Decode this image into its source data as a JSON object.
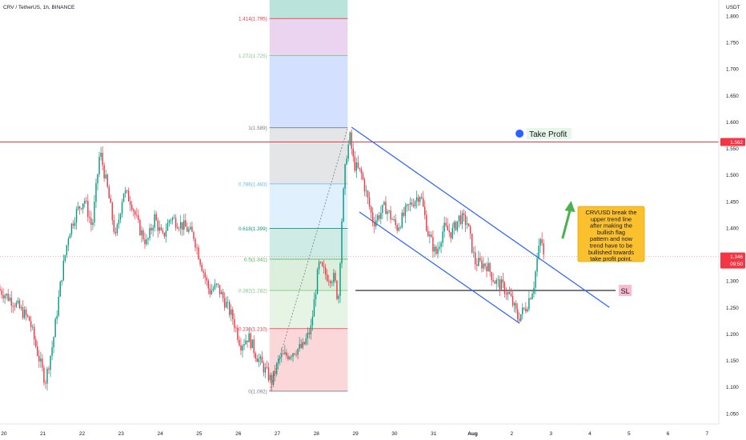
{
  "header": {
    "symbol_label": "CRV / TetherUS, 1h, BINANCE",
    "currency": "USDT"
  },
  "price_axis": {
    "ticks": [
      "1.800",
      "1.750",
      "1.700",
      "1.650",
      "1.600",
      "1.550",
      "1.500",
      "1.450",
      "1.400",
      "1.350",
      "1.300",
      "1.250",
      "1.200",
      "1.150",
      "1.100",
      "1.050"
    ]
  },
  "time_axis": {
    "ticks": [
      {
        "label": "20",
        "day": 20
      },
      {
        "label": "21",
        "day": 21
      },
      {
        "label": "22",
        "day": 22
      },
      {
        "label": "23",
        "day": 23
      },
      {
        "label": "24",
        "day": 24
      },
      {
        "label": "25",
        "day": 25
      },
      {
        "label": "26",
        "day": 26
      },
      {
        "label": "27",
        "day": 27
      },
      {
        "label": "28",
        "day": 28
      },
      {
        "label": "29",
        "day": 29
      },
      {
        "label": "30",
        "day": 30
      },
      {
        "label": "31",
        "day": 31
      },
      {
        "label": "Aug",
        "day": 32
      },
      {
        "label": "2",
        "day": 33
      },
      {
        "label": "3",
        "day": 34
      },
      {
        "label": "4",
        "day": 35
      },
      {
        "label": "5",
        "day": 36
      },
      {
        "label": "6",
        "day": 37
      },
      {
        "label": "7",
        "day": 38
      }
    ]
  },
  "chart_data": {
    "type": "line",
    "title": "",
    "xlabel": "",
    "ylabel": "",
    "x_unit": "day (July; Aug 1 = 32)",
    "ylim": [
      1.03,
      1.83
    ],
    "xlim": [
      19.9,
      38.3
    ],
    "grid": false,
    "legend": "none",
    "series": [
      {
        "values": [
          [
            19.9,
            1.285
          ],
          [
            20.3,
            1.26
          ],
          [
            20.7,
            1.225
          ],
          [
            20.9,
            1.165
          ],
          [
            21.1,
            1.11
          ],
          [
            21.3,
            1.185
          ],
          [
            21.5,
            1.3
          ],
          [
            21.7,
            1.39
          ],
          [
            21.9,
            1.43
          ],
          [
            22.1,
            1.455
          ],
          [
            22.3,
            1.4
          ],
          [
            22.5,
            1.545
          ],
          [
            22.7,
            1.47
          ],
          [
            22.9,
            1.38
          ],
          [
            23.1,
            1.47
          ],
          [
            23.3,
            1.45
          ],
          [
            23.5,
            1.4
          ],
          [
            23.7,
            1.37
          ],
          [
            23.9,
            1.42
          ],
          [
            24.1,
            1.38
          ],
          [
            24.3,
            1.42
          ],
          [
            24.5,
            1.41
          ],
          [
            24.7,
            1.4
          ],
          [
            24.9,
            1.385
          ],
          [
            25.1,
            1.33
          ],
          [
            25.3,
            1.28
          ],
          [
            25.5,
            1.29
          ],
          [
            25.7,
            1.26
          ],
          [
            25.9,
            1.23
          ],
          [
            26.1,
            1.18
          ],
          [
            26.3,
            1.195
          ],
          [
            26.5,
            1.16
          ],
          [
            26.7,
            1.135
          ],
          [
            26.9,
            1.11
          ],
          [
            27.1,
            1.155
          ],
          [
            27.3,
            1.16
          ],
          [
            27.5,
            1.17
          ],
          [
            27.7,
            1.175
          ],
          [
            27.9,
            1.21
          ],
          [
            28.1,
            1.33
          ],
          [
            28.3,
            1.31
          ],
          [
            28.5,
            1.305
          ],
          [
            28.6,
            1.26
          ],
          [
            28.7,
            1.43
          ],
          [
            28.8,
            1.535
          ],
          [
            28.9,
            1.57
          ],
          [
            29.0,
            1.52
          ],
          [
            29.2,
            1.5
          ],
          [
            29.5,
            1.41
          ],
          [
            29.8,
            1.44
          ],
          [
            30.1,
            1.4
          ],
          [
            30.4,
            1.44
          ],
          [
            30.7,
            1.465
          ],
          [
            30.9,
            1.39
          ],
          [
            31.1,
            1.35
          ],
          [
            31.3,
            1.4
          ],
          [
            31.5,
            1.39
          ],
          [
            31.7,
            1.42
          ],
          [
            31.9,
            1.41
          ],
          [
            32.1,
            1.335
          ],
          [
            32.4,
            1.33
          ],
          [
            32.6,
            1.3
          ],
          [
            32.8,
            1.29
          ],
          [
            33.0,
            1.27
          ],
          [
            33.2,
            1.23
          ],
          [
            33.4,
            1.25
          ],
          [
            33.6,
            1.29
          ],
          [
            33.7,
            1.345
          ],
          [
            33.8,
            1.385
          ],
          [
            33.85,
            1.345
          ]
        ]
      }
    ],
    "fibonacci": {
      "levels": [
        {
          "label": "0(1.092)",
          "ratio": 0,
          "price": 1.092,
          "color": "#787b86"
        },
        {
          "label": "0.236(1.210)",
          "ratio": 0.236,
          "price": 1.21,
          "color": "#f23645"
        },
        {
          "label": "0.382(1.282)",
          "ratio": 0.382,
          "price": 1.282,
          "color": "#81c784"
        },
        {
          "label": "0.5(1.341)",
          "ratio": 0.5,
          "price": 1.341,
          "color": "#4caf50"
        },
        {
          "label": "0.618(1.399)",
          "ratio": 0.618,
          "price": 1.399,
          "color": "#089981"
        },
        {
          "label": "0.786(1.483)",
          "ratio": 0.786,
          "price": 1.483,
          "color": "#64b5f6"
        },
        {
          "label": "1(1.589)",
          "ratio": 1,
          "price": 1.589,
          "color": "#787b86"
        },
        {
          "label": "1.272(1.725)",
          "ratio": 1.272,
          "price": 1.725,
          "color": "#81c784"
        },
        {
          "label": "1.414(1.795)",
          "ratio": 1.414,
          "price": 1.795,
          "color": "#f23645"
        }
      ],
      "day_start": 26.8,
      "day_end": 28.8
    },
    "lines": {
      "resistance": {
        "price": 1.562,
        "label": "1.562",
        "color": "#f23645"
      },
      "current": {
        "price": 1.346,
        "label": "1.346",
        "countdown": "09:50",
        "color": "#f23645"
      },
      "stop_loss": {
        "price": 1.282,
        "label": "SL",
        "day_start": 29.0,
        "day_end": 33.2
      }
    },
    "channel": {
      "upper": [
        [
          28.9,
          1.59
        ],
        [
          35.5,
          1.25
        ]
      ],
      "lower": [
        [
          29.1,
          1.43
        ],
        [
          33.2,
          1.22
        ]
      ]
    },
    "take_profit": {
      "label": "Take Profit",
      "day": 33.2,
      "price": 1.578
    },
    "annotation": {
      "text": "CRVUSD break the upper trend line after making the bullish flag pattern and now trend have to be bullished towards take profit point."
    }
  }
}
